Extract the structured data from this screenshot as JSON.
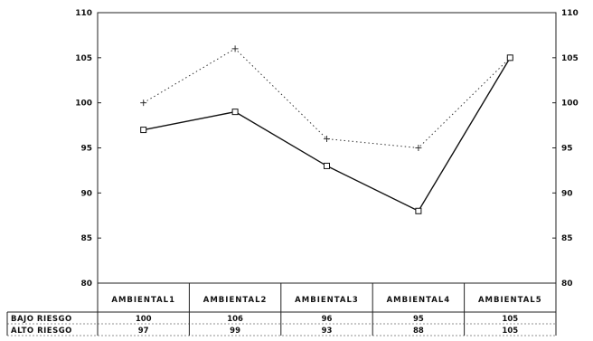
{
  "chart_data": {
    "type": "line",
    "title": "",
    "xlabel": "",
    "ylabel": "",
    "ylim": [
      80,
      110
    ],
    "yticks": [
      80,
      85,
      90,
      95,
      100,
      105,
      110
    ],
    "categories": [
      "AMBIENTAL1",
      "AMBIENTAL2",
      "AMBIENTAL3",
      "AMBIENTAL4",
      "AMBIENTAL5"
    ],
    "series": [
      {
        "name": "BAJO RIESGO",
        "values": [
          100,
          106,
          96,
          95,
          105
        ],
        "style": "dotted",
        "marker": "plus",
        "color": "#333333"
      },
      {
        "name": "ALTO RIESGO",
        "values": [
          97,
          99,
          93,
          88,
          105
        ],
        "style": "solid",
        "marker": "square",
        "color": "#111111"
      }
    ],
    "grid": false,
    "legend": "data table below chart"
  }
}
